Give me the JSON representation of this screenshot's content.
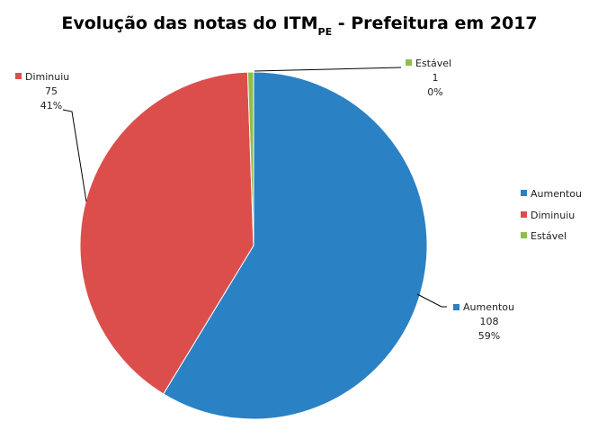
{
  "chart_data": {
    "type": "pie",
    "title_main": "Evolução das notas do ITM",
    "title_subscript": "PE",
    "title_suffix": " - Prefeitura em 2017",
    "slices": [
      {
        "name": "Aumentou",
        "value": 108,
        "percent_label": "59%",
        "color": "#2A81C4"
      },
      {
        "name": "Diminuiu",
        "value": 75,
        "percent_label": "41%",
        "color": "#DC4E4C"
      },
      {
        "name": "Estável",
        "value": 1,
        "percent_label": "0%",
        "color": "#8DBE4A"
      }
    ],
    "legend": {
      "placement": "right",
      "entries": [
        "Aumentou",
        "Diminuiu",
        "Estável"
      ]
    }
  }
}
